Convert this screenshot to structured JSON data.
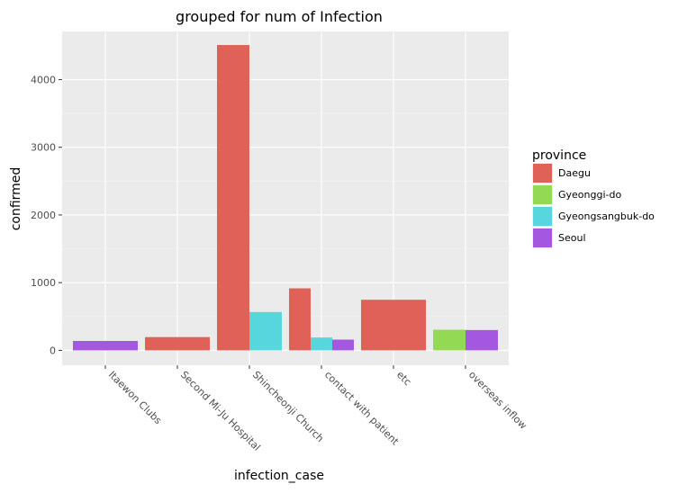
{
  "chart_data": {
    "type": "bar",
    "title": "grouped for num of Infection",
    "xlabel": "infection_case",
    "ylabel": "confirmed",
    "ylim": [
      -220,
      4710
    ],
    "yticks": [
      0,
      1000,
      2000,
      3000,
      4000
    ],
    "categories": [
      "Itaewon Clubs",
      "Second Mi-Ju Hospital",
      "Shincheonji Church",
      "contact with patient",
      "etc",
      "overseas inflow"
    ],
    "grid": true,
    "legend_position": "right",
    "legend_title": "province",
    "series": [
      {
        "name": "Daegu",
        "color": "#e06158",
        "values": [
          null,
          196,
          4510,
          916,
          747,
          null
        ]
      },
      {
        "name": "Gyeonggi-do",
        "color": "#93d953",
        "values": [
          null,
          null,
          null,
          null,
          null,
          305
        ]
      },
      {
        "name": "Gyeongsangbuk-do",
        "color": "#57d6dd",
        "values": [
          null,
          null,
          566,
          190,
          null,
          null
        ]
      },
      {
        "name": "Seoul",
        "color": "#a457df",
        "values": [
          139,
          null,
          null,
          159,
          null,
          300
        ]
      }
    ],
    "bars": [
      {
        "category": "Itaewon Clubs",
        "series": "Seoul",
        "value": 139
      },
      {
        "category": "Second Mi-Ju Hospital",
        "series": "Daegu",
        "value": 196
      },
      {
        "category": "Shincheonji Church",
        "series": "Daegu",
        "value": 4510
      },
      {
        "category": "Shincheonji Church",
        "series": "Gyeongsangbuk-do",
        "value": 566
      },
      {
        "category": "contact with patient",
        "series": "Daegu",
        "value": 916
      },
      {
        "category": "contact with patient",
        "series": "Gyeongsangbuk-do",
        "value": 190
      },
      {
        "category": "contact with patient",
        "series": "Seoul",
        "value": 159
      },
      {
        "category": "etc",
        "series": "Daegu",
        "value": 747
      },
      {
        "category": "overseas inflow",
        "series": "Gyeonggi-do",
        "value": 305
      },
      {
        "category": "overseas inflow",
        "series": "Seoul",
        "value": 300
      }
    ]
  }
}
